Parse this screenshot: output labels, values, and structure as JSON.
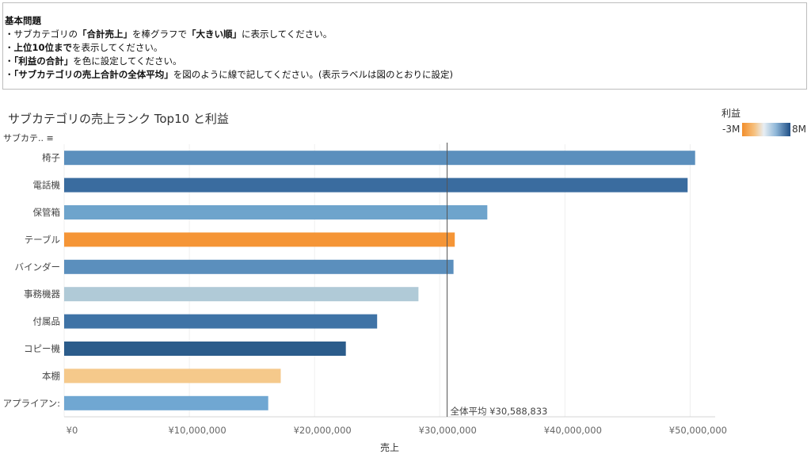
{
  "task": {
    "heading": "基本問題",
    "lines": [
      {
        "prefix": "・サブカテゴリの",
        "b1": "「合計売上」",
        "mid": "を棒グラフで",
        "b2": "「大きい順」",
        "suffix": "に表示してください。"
      },
      {
        "prefix": "・",
        "b1": "上位10位まで",
        "mid": "を表示してください。",
        "b2": "",
        "suffix": ""
      },
      {
        "prefix": "・",
        "b1": "「利益の合計」",
        "mid": "を色に設定してください。",
        "b2": "",
        "suffix": ""
      },
      {
        "prefix": "・",
        "b1": "「サブカテゴリの売上合計の全体平均」",
        "mid": "を図のように線で記してください。(表示ラベルは図のとおりに設定)",
        "b2": "",
        "suffix": ""
      }
    ]
  },
  "legend": {
    "title": "利益",
    "min_label": "-3M",
    "max_label": "8M",
    "colors": [
      "#f28e2b",
      "#f6c07d",
      "#e8eef3",
      "#8fb7d8",
      "#1f4e85"
    ]
  },
  "chart_data": {
    "type": "bar",
    "orientation": "horizontal",
    "title": "サブカテゴリの売上ランク Top10 と利益",
    "yaxis_header": "サブカテ..",
    "xlabel": "売上",
    "xlim": [
      0,
      52000000
    ],
    "xticks": [
      0,
      10000000,
      20000000,
      30000000,
      40000000,
      50000000
    ],
    "xtick_labels": [
      "¥0",
      "¥10,000,000",
      "¥20,000,000",
      "¥30,000,000",
      "¥40,000,000",
      "¥50,000,000"
    ],
    "categories": [
      "椅子",
      "電話機",
      "保管箱",
      "テーブル",
      "バインダー",
      "事務機器",
      "付属品",
      "コピー機",
      "本棚",
      "アプライアン:"
    ],
    "values": [
      50400000,
      49800000,
      33800000,
      31200000,
      31100000,
      28300000,
      25000000,
      22500000,
      17300000,
      16300000
    ],
    "colors": [
      "#5b8fbd",
      "#3a6c9f",
      "#6ea4cc",
      "#f59536",
      "#5b8fbd",
      "#b0cad7",
      "#3f73a6",
      "#2b5c8b",
      "#f5c98b",
      "#70a7d2"
    ],
    "reference_line": {
      "value": 30588833,
      "label": "全体平均 ¥30,588,833"
    },
    "grid": true
  }
}
